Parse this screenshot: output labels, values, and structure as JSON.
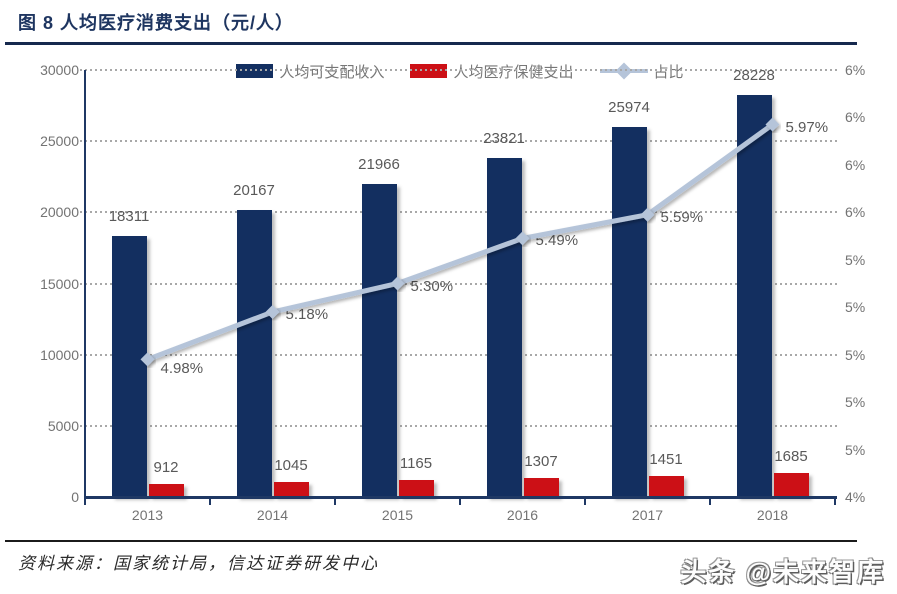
{
  "header": {
    "title": "图 8 人均医疗消费支出（元/人）"
  },
  "legend": [
    {
      "label": "人均可支配收入",
      "type": "bar",
      "color": "#132f60"
    },
    {
      "label": "人均医疗保健支出",
      "type": "bar",
      "color": "#cc1016"
    },
    {
      "label": "占比",
      "type": "line",
      "color": "#b5c4d9"
    }
  ],
  "chart_data": {
    "type": "bar",
    "title": "图 8 人均医疗消费支出（元/人）",
    "categories": [
      "2013",
      "2014",
      "2015",
      "2016",
      "2017",
      "2018"
    ],
    "series": [
      {
        "name": "人均可支配收入",
        "type": "bar",
        "axis": "left",
        "color": "#132f60",
        "values": [
          18311,
          20167,
          21966,
          23821,
          25974,
          28228
        ]
      },
      {
        "name": "人均医疗保健支出",
        "type": "bar",
        "axis": "left",
        "color": "#cc1016",
        "values": [
          912,
          1045,
          1165,
          1307,
          1451,
          1685
        ]
      },
      {
        "name": "占比",
        "type": "line",
        "axis": "right",
        "color": "#b5c4d9",
        "values": [
          4.98,
          5.18,
          5.3,
          5.49,
          5.59,
          5.97
        ],
        "point_labels": [
          "4.98%",
          "5.18%",
          "5.30%",
          "5.49%",
          "5.59%",
          "5.97%"
        ]
      }
    ],
    "left_axis": {
      "min": 0,
      "max": 30000,
      "step": 5000,
      "ticks_top_to_bottom": [
        "30000",
        "25000",
        "20000",
        "15000",
        "10000",
        "5000",
        "0"
      ]
    },
    "right_axis": {
      "min": 4.4,
      "max": 6.2,
      "step": 0.2,
      "ticks_top_to_bottom": [
        "6%",
        "6%",
        "6%",
        "6%",
        "5%",
        "5%",
        "5%",
        "5%",
        "5%",
        "4%"
      ]
    },
    "grid": "horizontal-dotted",
    "legend_position": "top"
  },
  "footer": {
    "source": "资料来源：国家统计局，信达证券研发中心",
    "watermark": "头条 @未来智库"
  }
}
